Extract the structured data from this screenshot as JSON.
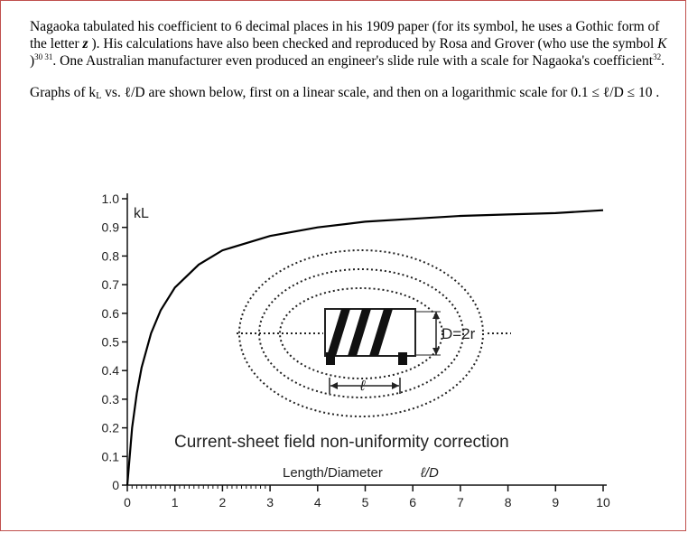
{
  "paragraph1": {
    "s1": "Nagaoka tabulated his coefficient to 6 decimal places in his 1909 paper (for its symbol, he uses a Gothic form of the letter ",
    "gothic_letter": "z",
    "s2": " ).  His calculations have also been checked and reproduced by Rosa and Grover (who use the symbol ",
    "symbol_k": "K",
    "s3": " )",
    "refs_a": "30 31",
    "s4": ".  One Australian manufacturer even produced an engineer's slide rule with a scale for Nagaoka's coefficient",
    "refs_b": "32",
    "s5": "."
  },
  "paragraph2": {
    "s1": "Graphs of  k",
    "sub_l": "L",
    "s2": "  vs.  ℓ/D are shown below, first on a linear scale, and then on a logarithmic scale for 0.1 ≤ ℓ/D ≤ 10 ."
  },
  "chart_data": {
    "type": "line",
    "title": "Current-sheet field non-uniformity correction",
    "xlabel": "Length/Diameter",
    "xlabel_symbol": "ℓ/D",
    "ylabel": "kL",
    "xlim": [
      0,
      10
    ],
    "ylim": [
      0,
      1
    ],
    "xticks": [
      "0",
      "1",
      "2",
      "3",
      "4",
      "5",
      "6",
      "7",
      "8",
      "9",
      "10"
    ],
    "yticks": [
      "0",
      "0.1",
      "0.2",
      "0.3",
      "0.4",
      "0.5",
      "0.6",
      "0.7",
      "0.8",
      "0.9",
      "1.0"
    ],
    "series": [
      {
        "x": [
          0,
          0.1,
          0.2,
          0.3,
          0.5,
          0.7,
          1,
          1.5,
          2,
          3,
          4,
          5,
          6,
          7,
          8,
          9,
          10
        ],
        "y": [
          0,
          0.2,
          0.32,
          0.41,
          0.53,
          0.61,
          0.69,
          0.77,
          0.82,
          0.87,
          0.9,
          0.92,
          0.93,
          0.94,
          0.945,
          0.95,
          0.96
        ]
      }
    ],
    "inset": {
      "dimension_label": "D=2r",
      "length_label": "ℓ"
    }
  }
}
